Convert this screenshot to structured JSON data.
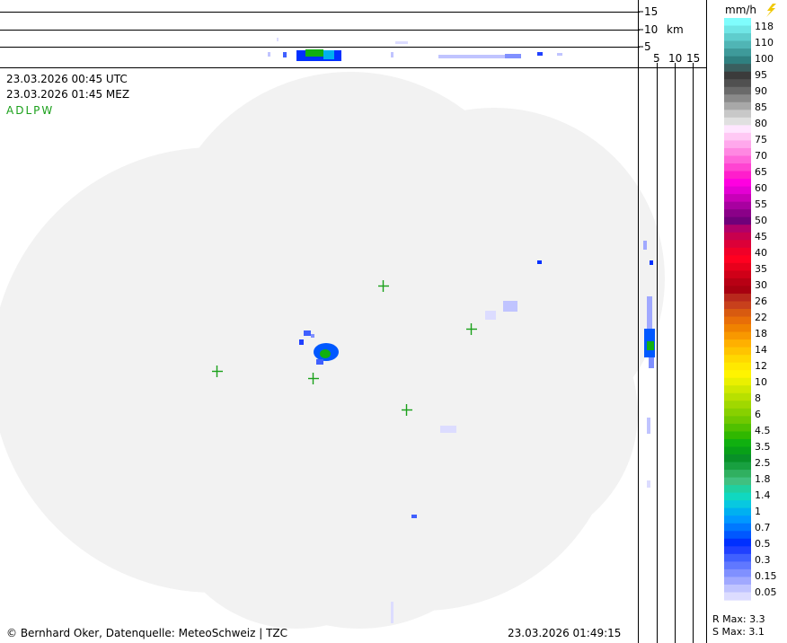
{
  "header": {
    "time_utc": "23.03.2026 00:45 UTC",
    "time_local": "23.03.2026 01:45 MEZ",
    "stations": "ADLPW"
  },
  "profile": {
    "unit": "km",
    "height_ticks": [
      "15",
      "10",
      "5"
    ],
    "distance_ticks": [
      "5",
      "10",
      "15"
    ]
  },
  "legend": {
    "unit": "mm/h",
    "lightning_icon": "lightning-icon",
    "labels": [
      "118",
      "110",
      "100",
      "95",
      "90",
      "85",
      "80",
      "75",
      "70",
      "65",
      "60",
      "55",
      "50",
      "45",
      "40",
      "35",
      "30",
      "26",
      "22",
      "18",
      "14",
      "12",
      "10",
      "8",
      "6",
      "4.5",
      "3.5",
      "2.5",
      "1.8",
      "1.4",
      "1",
      "0.7",
      "0.5",
      "0.3",
      "0.15",
      "0.05"
    ],
    "colors": [
      "#7ffdfd",
      "#70e6e6",
      "#5fcdcd",
      "#50b5b5",
      "#3e9a9a",
      "#2f8080",
      "#3a5f5f",
      "#3b3b3b",
      "#505050",
      "#6a6a6a",
      "#8a8a8a",
      "#a8a8a8",
      "#c8c8c8",
      "#e0e0e0",
      "#ffe6ff",
      "#ffc8f4",
      "#ffa8ec",
      "#ff88e2",
      "#ff66da",
      "#ff44d2",
      "#ff1ecc",
      "#ff00e0",
      "#e400d4",
      "#c800b8",
      "#a800a0",
      "#8a0088",
      "#70007a",
      "#b0006a",
      "#c8004e",
      "#dc0038",
      "#f00028",
      "#ff0020",
      "#e8001c",
      "#d00018",
      "#b80014",
      "#a80010",
      "#b8281c",
      "#c8401c",
      "#d85a10",
      "#e86e08",
      "#f08200",
      "#f89800",
      "#ffb000",
      "#ffc400",
      "#ffd800",
      "#ffe800",
      "#fff400",
      "#eaf000",
      "#d0e800",
      "#b8e000",
      "#a0d800",
      "#88d000",
      "#70c800",
      "#50c000",
      "#30b800",
      "#10b010",
      "#08a018",
      "#089028",
      "#18a040",
      "#30b060",
      "#40c080",
      "#20d0a0",
      "#10d8c0",
      "#08c8e0",
      "#00b0f0",
      "#0098ff",
      "#0078ff",
      "#0058ff",
      "#0030ff",
      "#2040ff",
      "#4060ff",
      "#6078ff",
      "#8090ff",
      "#a0a8ff",
      "#c0c4ff",
      "#dcdcff"
    ]
  },
  "footer": {
    "copyright": "© Bernhard Oker, Datenquelle: MeteoSchweiz | TZC",
    "timestamp": "23.03.2026 01:49:15",
    "r_max": "R Max: 3.3",
    "s_max": "S Max: 3.1"
  }
}
